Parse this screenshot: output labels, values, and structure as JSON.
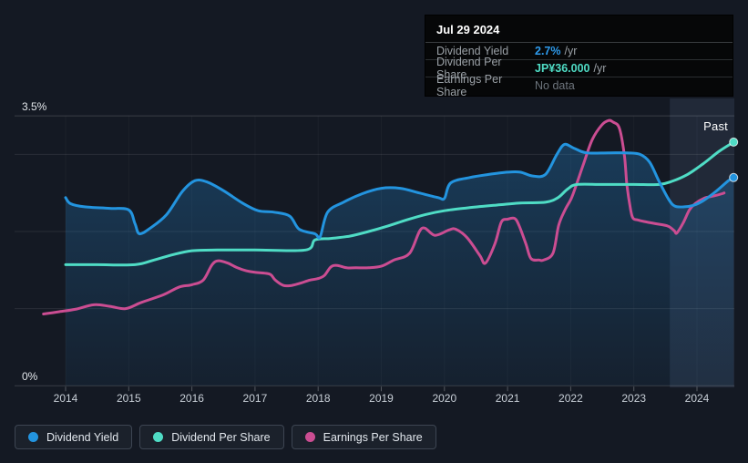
{
  "tooltip": {
    "date": "Jul 29 2024",
    "rows": [
      {
        "label": "Dividend Yield",
        "value": "2.7%",
        "suffix": "/yr",
        "value_color": "#2e9bed"
      },
      {
        "label": "Dividend Per Share",
        "value": "JP¥36.000",
        "suffix": "/yr",
        "value_color": "#4fdcc5"
      },
      {
        "label": "Earnings Per Share",
        "value": "No data",
        "suffix": "",
        "value_color": "#6d747c"
      }
    ]
  },
  "legend": [
    {
      "label": "Dividend Yield",
      "color": "#2394df"
    },
    {
      "label": "Dividend Per Share",
      "color": "#4fdcc5"
    },
    {
      "label": "Earnings Per Share",
      "color": "#cb4d92"
    }
  ],
  "chart_data": {
    "type": "line",
    "past_label": "Past",
    "y_axis": {
      "min": 0,
      "max": 3.5,
      "unit": "%",
      "tick_labels": [
        {
          "value": 3.5,
          "text": "3.5%"
        },
        {
          "value": 0,
          "text": "0%"
        }
      ],
      "gridline_values": [
        0,
        1,
        2,
        3,
        3.5
      ],
      "grid": "horizontal lines, faint vertical year lines"
    },
    "x_axis": {
      "years": [
        2014,
        2015,
        2016,
        2017,
        2018,
        2019,
        2020,
        2021,
        2022,
        2023,
        2024
      ],
      "data_start": 2013.65,
      "data_end": 2024.58
    },
    "past_region": {
      "start": 2023.57,
      "end": 2024.58
    },
    "note": "Left axis is percent (Dividend Yield). Dividend Per Share and Earnings Per Share have no visible axis; their points are stored in left-axis plot units.",
    "series": [
      {
        "name": "Dividend Yield",
        "color": "#2394df",
        "end_dot": true,
        "area": true,
        "latest_label": "2.7% /yr",
        "points": [
          [
            2014.0,
            2.44
          ],
          [
            2014.08,
            2.36
          ],
          [
            2014.3,
            2.32
          ],
          [
            2014.7,
            2.3
          ],
          [
            2015.0,
            2.28
          ],
          [
            2015.1,
            2.1
          ],
          [
            2015.17,
            1.97
          ],
          [
            2015.35,
            2.05
          ],
          [
            2015.6,
            2.22
          ],
          [
            2015.85,
            2.52
          ],
          [
            2016.05,
            2.66
          ],
          [
            2016.25,
            2.64
          ],
          [
            2016.5,
            2.53
          ],
          [
            2016.8,
            2.37
          ],
          [
            2017.05,
            2.27
          ],
          [
            2017.3,
            2.25
          ],
          [
            2017.55,
            2.2
          ],
          [
            2017.7,
            2.03
          ],
          [
            2017.95,
            1.97
          ],
          [
            2018.03,
            1.93
          ],
          [
            2018.15,
            2.25
          ],
          [
            2018.4,
            2.38
          ],
          [
            2018.7,
            2.49
          ],
          [
            2019.0,
            2.56
          ],
          [
            2019.3,
            2.56
          ],
          [
            2019.6,
            2.5
          ],
          [
            2019.9,
            2.44
          ],
          [
            2020.0,
            2.43
          ],
          [
            2020.1,
            2.63
          ],
          [
            2020.4,
            2.7
          ],
          [
            2020.7,
            2.74
          ],
          [
            2021.0,
            2.77
          ],
          [
            2021.2,
            2.77
          ],
          [
            2021.4,
            2.72
          ],
          [
            2021.6,
            2.74
          ],
          [
            2021.78,
            3.0
          ],
          [
            2021.9,
            3.13
          ],
          [
            2022.05,
            3.08
          ],
          [
            2022.25,
            3.02
          ],
          [
            2022.6,
            3.02
          ],
          [
            2022.9,
            3.02
          ],
          [
            2023.1,
            3.0
          ],
          [
            2023.25,
            2.9
          ],
          [
            2023.4,
            2.65
          ],
          [
            2023.55,
            2.42
          ],
          [
            2023.65,
            2.33
          ],
          [
            2023.8,
            2.32
          ],
          [
            2023.95,
            2.34
          ],
          [
            2024.1,
            2.4
          ],
          [
            2024.3,
            2.52
          ],
          [
            2024.5,
            2.66
          ],
          [
            2024.58,
            2.7
          ]
        ]
      },
      {
        "name": "Dividend Per Share",
        "color": "#4fdcc5",
        "end_dot": true,
        "area": false,
        "latest_label": "JP¥36.000 /yr",
        "points": [
          [
            2014.0,
            1.57
          ],
          [
            2014.5,
            1.57
          ],
          [
            2015.1,
            1.57
          ],
          [
            2015.4,
            1.63
          ],
          [
            2015.7,
            1.7
          ],
          [
            2016.0,
            1.75
          ],
          [
            2016.4,
            1.76
          ],
          [
            2017.0,
            1.76
          ],
          [
            2017.8,
            1.76
          ],
          [
            2017.95,
            1.89
          ],
          [
            2018.2,
            1.91
          ],
          [
            2018.5,
            1.94
          ],
          [
            2018.8,
            2.0
          ],
          [
            2019.1,
            2.07
          ],
          [
            2019.4,
            2.15
          ],
          [
            2019.7,
            2.22
          ],
          [
            2020.0,
            2.27
          ],
          [
            2020.4,
            2.31
          ],
          [
            2020.8,
            2.34
          ],
          [
            2021.2,
            2.37
          ],
          [
            2021.6,
            2.38
          ],
          [
            2021.8,
            2.44
          ],
          [
            2021.95,
            2.55
          ],
          [
            2022.1,
            2.61
          ],
          [
            2022.5,
            2.61
          ],
          [
            2023.0,
            2.61
          ],
          [
            2023.4,
            2.61
          ],
          [
            2023.6,
            2.65
          ],
          [
            2023.85,
            2.74
          ],
          [
            2024.1,
            2.88
          ],
          [
            2024.35,
            3.04
          ],
          [
            2024.58,
            3.16
          ]
        ]
      },
      {
        "name": "Earnings Per Share",
        "color": "#cb4d92",
        "end_dot": false,
        "area": false,
        "latest_label": "No data",
        "points": [
          [
            2013.65,
            0.93
          ],
          [
            2013.9,
            0.96
          ],
          [
            2014.15,
            0.99
          ],
          [
            2014.45,
            1.05
          ],
          [
            2014.7,
            1.03
          ],
          [
            2014.95,
            1.0
          ],
          [
            2015.2,
            1.08
          ],
          [
            2015.55,
            1.18
          ],
          [
            2015.8,
            1.28
          ],
          [
            2016.0,
            1.31
          ],
          [
            2016.18,
            1.37
          ],
          [
            2016.32,
            1.57
          ],
          [
            2016.42,
            1.62
          ],
          [
            2016.57,
            1.59
          ],
          [
            2016.72,
            1.53
          ],
          [
            2016.86,
            1.49
          ],
          [
            2017.0,
            1.47
          ],
          [
            2017.15,
            1.46
          ],
          [
            2017.25,
            1.44
          ],
          [
            2017.32,
            1.37
          ],
          [
            2017.45,
            1.3
          ],
          [
            2017.58,
            1.3
          ],
          [
            2017.72,
            1.33
          ],
          [
            2017.87,
            1.37
          ],
          [
            2018.0,
            1.39
          ],
          [
            2018.1,
            1.43
          ],
          [
            2018.2,
            1.54
          ],
          [
            2018.3,
            1.56
          ],
          [
            2018.45,
            1.53
          ],
          [
            2018.6,
            1.53
          ],
          [
            2018.8,
            1.53
          ],
          [
            2019.0,
            1.55
          ],
          [
            2019.2,
            1.63
          ],
          [
            2019.45,
            1.72
          ],
          [
            2019.64,
            2.04
          ],
          [
            2019.85,
            1.95
          ],
          [
            2020.07,
            2.02
          ],
          [
            2020.18,
            2.03
          ],
          [
            2020.36,
            1.92
          ],
          [
            2020.56,
            1.69
          ],
          [
            2020.65,
            1.59
          ],
          [
            2020.8,
            1.84
          ],
          [
            2020.9,
            2.12
          ],
          [
            2021.0,
            2.16
          ],
          [
            2021.11,
            2.17
          ],
          [
            2021.18,
            2.08
          ],
          [
            2021.29,
            1.84
          ],
          [
            2021.37,
            1.65
          ],
          [
            2021.5,
            1.63
          ],
          [
            2021.57,
            1.63
          ],
          [
            2021.72,
            1.72
          ],
          [
            2021.81,
            2.08
          ],
          [
            2021.91,
            2.28
          ],
          [
            2022.01,
            2.43
          ],
          [
            2022.1,
            2.63
          ],
          [
            2022.2,
            2.87
          ],
          [
            2022.34,
            3.19
          ],
          [
            2022.49,
            3.38
          ],
          [
            2022.6,
            3.44
          ],
          [
            2022.67,
            3.42
          ],
          [
            2022.77,
            3.34
          ],
          [
            2022.85,
            2.99
          ],
          [
            2022.89,
            2.6
          ],
          [
            2022.95,
            2.28
          ],
          [
            2022.99,
            2.17
          ],
          [
            2023.06,
            2.15
          ],
          [
            2023.16,
            2.13
          ],
          [
            2023.35,
            2.1
          ],
          [
            2023.54,
            2.07
          ],
          [
            2023.64,
            2.01
          ],
          [
            2023.68,
            1.98
          ],
          [
            2023.78,
            2.11
          ],
          [
            2023.88,
            2.28
          ],
          [
            2023.97,
            2.36
          ],
          [
            2024.11,
            2.43
          ],
          [
            2024.26,
            2.46
          ],
          [
            2024.4,
            2.49
          ],
          [
            2024.43,
            2.5
          ]
        ]
      }
    ]
  }
}
